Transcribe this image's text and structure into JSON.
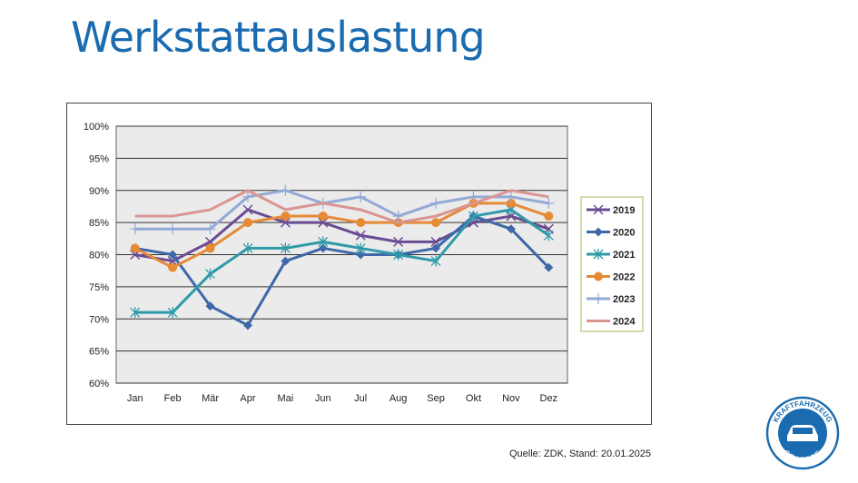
{
  "title": "Werkstattauslastung",
  "source": "Quelle: ZDK, Stand: 20.01.2025",
  "logo": {
    "text_top": "KRAFTFAHRZEUG",
    "text_bottom": "GEWERBE",
    "color": "#1a6bb0"
  },
  "chart_data": {
    "type": "line",
    "categories": [
      "Jan",
      "Feb",
      "Mär",
      "Apr",
      "Mai",
      "Jun",
      "Jul",
      "Aug",
      "Sep",
      "Okt",
      "Nov",
      "Dez"
    ],
    "ylim": [
      60,
      100
    ],
    "yticks": [
      "60%",
      "65%",
      "70%",
      "75%",
      "80%",
      "85%",
      "90%",
      "95%",
      "100%"
    ],
    "grid": true,
    "legend": "right",
    "series": [
      {
        "name": "2019",
        "color": "#6a4c93",
        "marker": "x",
        "values": [
          80,
          79,
          82,
          87,
          85,
          85,
          83,
          82,
          82,
          85,
          86,
          84
        ]
      },
      {
        "name": "2020",
        "color": "#3e68a8",
        "marker": "diamond",
        "values": [
          81,
          80,
          72,
          69,
          79,
          81,
          80,
          80,
          81,
          86,
          84,
          78
        ]
      },
      {
        "name": "2021",
        "color": "#2f9aa8",
        "marker": "star",
        "values": [
          71,
          71,
          77,
          81,
          81,
          82,
          81,
          80,
          79,
          86,
          87,
          83
        ]
      },
      {
        "name": "2022",
        "color": "#e68a35",
        "marker": "circle",
        "values": [
          81,
          78,
          81,
          85,
          86,
          86,
          85,
          85,
          85,
          88,
          88,
          86
        ]
      },
      {
        "name": "2023",
        "color": "#93a9d6",
        "marker": "plus",
        "values": [
          84,
          84,
          84,
          89,
          90,
          88,
          89,
          86,
          88,
          89,
          89,
          88
        ]
      },
      {
        "name": "2024",
        "color": "#d99594",
        "marker": "none",
        "values": [
          86,
          86,
          87,
          90,
          87,
          88,
          87,
          85,
          86,
          88,
          90,
          89
        ]
      }
    ]
  }
}
